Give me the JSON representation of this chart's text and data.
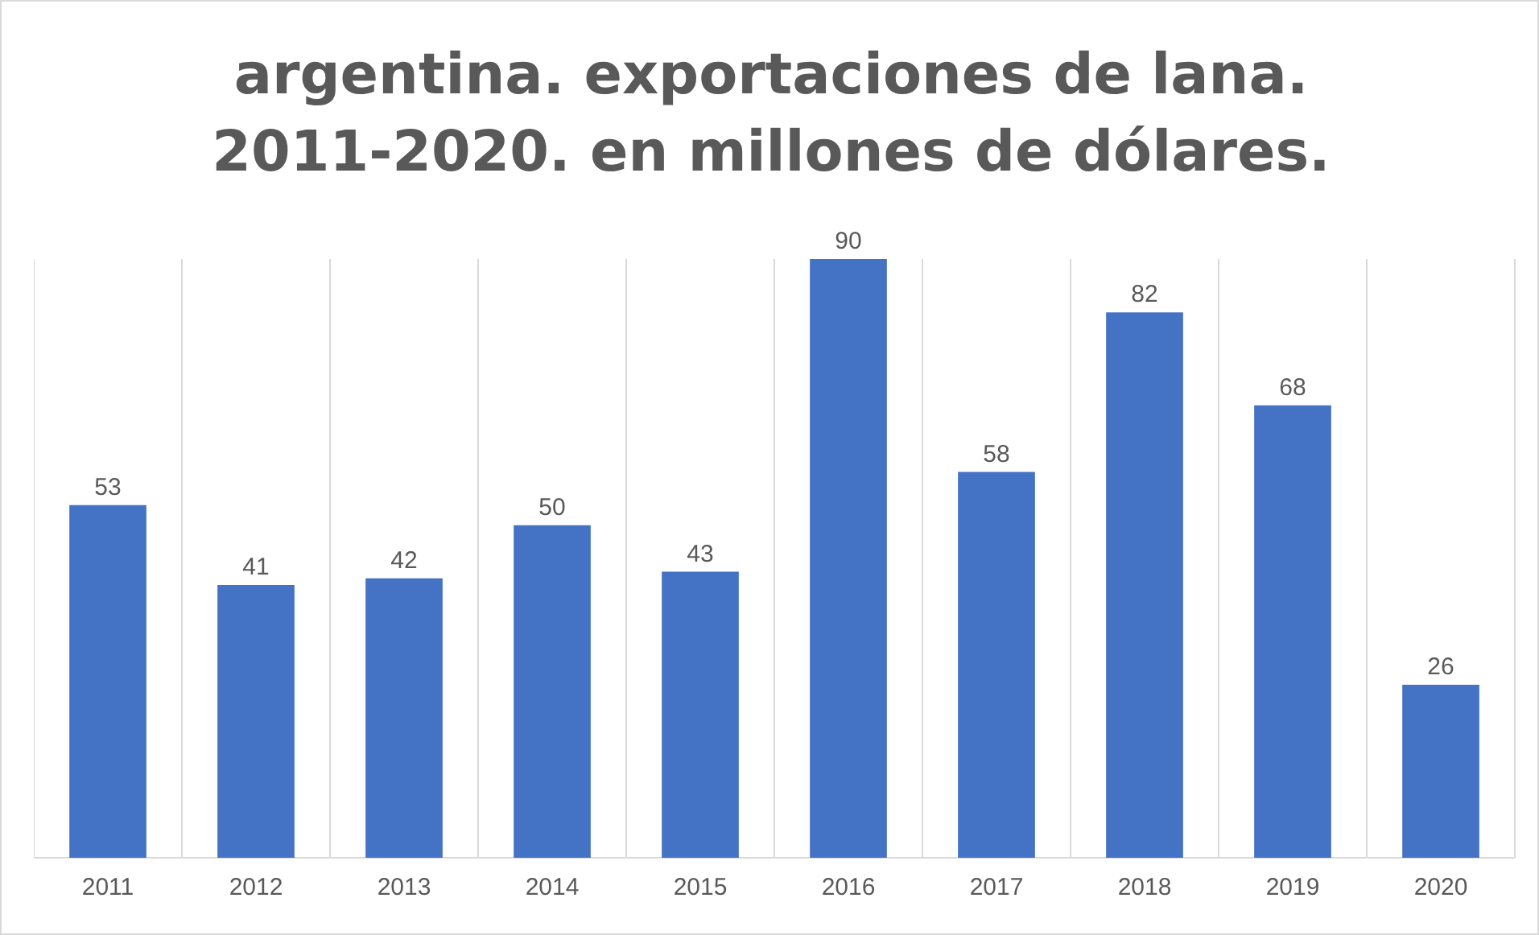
{
  "chart_data": {
    "type": "bar",
    "title": "argentina. exportaciones de lana. 2011-2020. en millones de dólares.",
    "categories": [
      "2011",
      "2012",
      "2013",
      "2014",
      "2015",
      "2016",
      "2017",
      "2018",
      "2019",
      "2020"
    ],
    "values": [
      53,
      41,
      42,
      50,
      43,
      90,
      58,
      82,
      68,
      26
    ],
    "color": "#4472c4",
    "data_labels": true,
    "grid": "x",
    "legend": false
  }
}
